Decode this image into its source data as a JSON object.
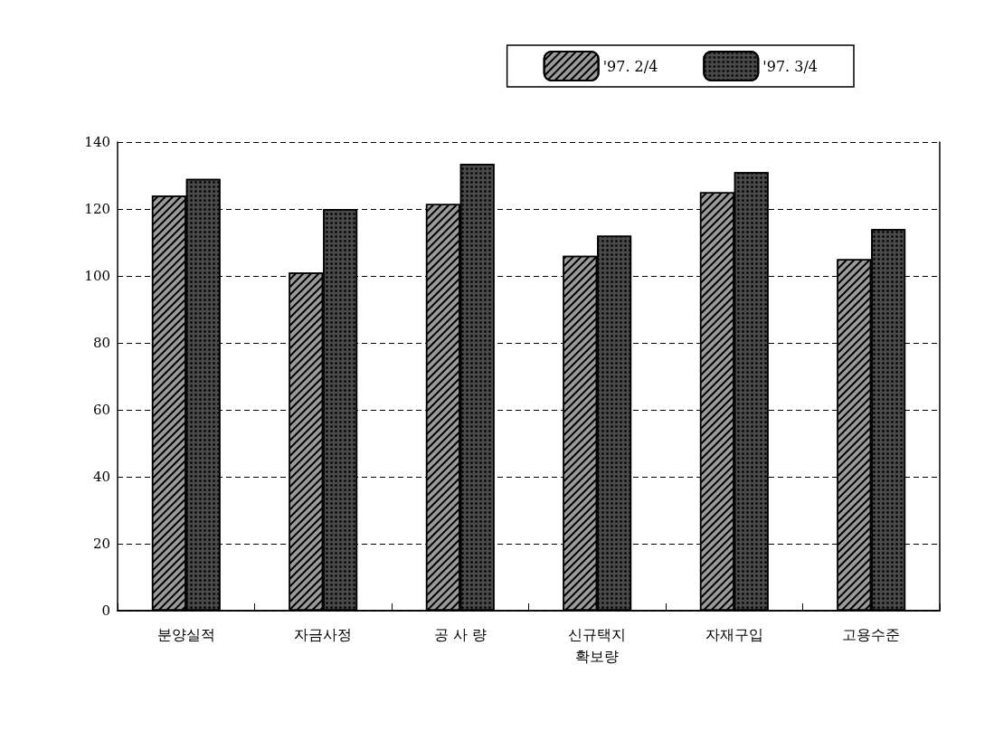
{
  "chart_data": {
    "type": "bar",
    "categories": [
      "분양실적",
      "자금사정",
      "공 사 량",
      "신규택지\n확보량",
      "자재구입",
      "고용수준"
    ],
    "series": [
      {
        "name": "'97. 2/4",
        "color": "#9a9a9a",
        "values": [
          124,
          101,
          121.5,
          106,
          125,
          105
        ]
      },
      {
        "name": "'97. 3/4",
        "color": "#4a4a4a",
        "values": [
          129,
          120,
          133.5,
          112,
          131,
          114
        ]
      }
    ],
    "ylim": [
      0,
      140
    ],
    "yticks": [
      0,
      20,
      40,
      60,
      80,
      100,
      120,
      140
    ],
    "grid": "y",
    "legend": "top right"
  }
}
